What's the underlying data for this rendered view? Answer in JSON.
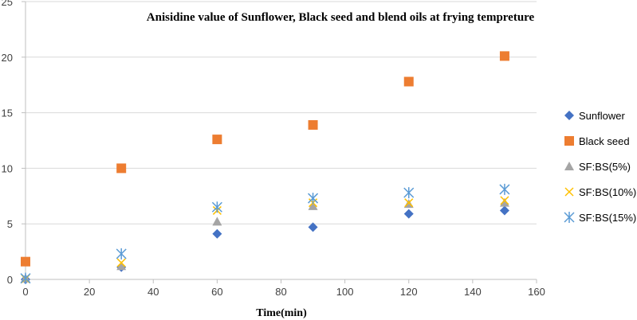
{
  "chart_data": {
    "type": "scatter",
    "title": "Anisidine value of Sunflower, Black seed and blend oils at frying tempreture",
    "xlabel": "Time(min)",
    "ylabel": "",
    "xlim": [
      0,
      160
    ],
    "ylim": [
      0,
      25
    ],
    "x_ticks": [
      0,
      20,
      40,
      60,
      80,
      100,
      120,
      140,
      160
    ],
    "y_ticks": [
      0,
      5,
      10,
      15,
      20,
      25
    ],
    "grid": "horizontal",
    "legend_position": "right",
    "x": [
      0,
      30,
      60,
      90,
      120,
      150
    ],
    "series": [
      {
        "name": "Sunflower",
        "marker": "diamond",
        "color": "#4472C4",
        "values": [
          0.0,
          1.1,
          4.1,
          4.7,
          5.9,
          6.2
        ]
      },
      {
        "name": "Black seed",
        "marker": "square",
        "color": "#ED7D31",
        "values": [
          1.6,
          10.0,
          12.6,
          13.9,
          17.8,
          20.1
        ]
      },
      {
        "name": "SF:BS(5%)",
        "marker": "triangle",
        "color": "#A5A5A5",
        "values": [
          0.1,
          1.2,
          5.2,
          6.6,
          6.8,
          6.9
        ]
      },
      {
        "name": "SF:BS(10%)",
        "marker": "x",
        "color": "#FFC000",
        "values": [
          0.05,
          1.5,
          6.2,
          6.9,
          6.9,
          7.1
        ]
      },
      {
        "name": "SF:BS(15%)",
        "marker": "star",
        "color": "#5B9BD5",
        "values": [
          0.1,
          2.3,
          6.5,
          7.3,
          7.8,
          8.1
        ]
      }
    ]
  }
}
